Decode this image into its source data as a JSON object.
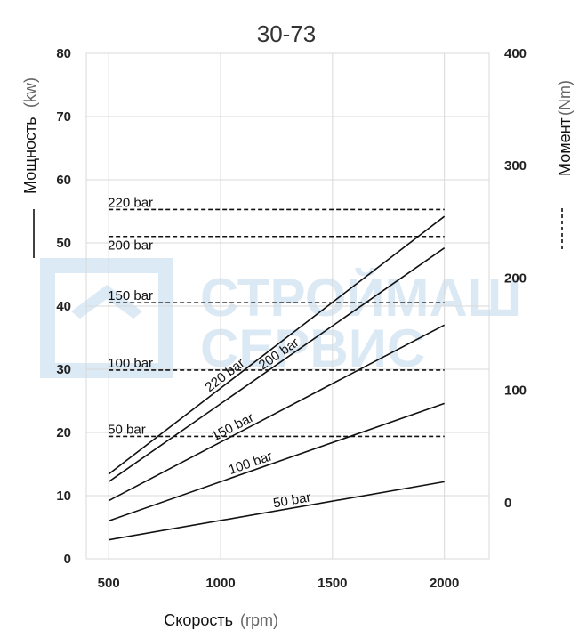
{
  "watermark": {
    "line1": "СТРОЙМАШ",
    "line2": "СЕРВИС"
  },
  "chart_data": {
    "type": "line",
    "title": "30-73",
    "xlabel": "Скорость",
    "xunit": "(rpm)",
    "ylabel_left": "Мощность",
    "yunit_left": "(kw)",
    "ylabel_right": "Момент",
    "yunit_right": "(Nm)",
    "xlim": [
      400,
      2200
    ],
    "x_ticks": [
      500,
      1000,
      1500,
      2000
    ],
    "ylim_left": [
      0,
      80
    ],
    "y_ticks_left": [
      0,
      10,
      20,
      30,
      40,
      50,
      60,
      70,
      80
    ],
    "ylim_right": [
      -50,
      400
    ],
    "y_ticks_right": [
      0,
      100,
      200,
      300,
      400
    ],
    "grid": true,
    "power_series": [
      {
        "name": "50 bar",
        "x": [
          500,
          2000
        ],
        "y": [
          3.0,
          12.2
        ]
      },
      {
        "name": "100 bar",
        "x": [
          500,
          2000
        ],
        "y": [
          6.0,
          24.6
        ]
      },
      {
        "name": "150 bar",
        "x": [
          500,
          2000
        ],
        "y": [
          9.2,
          37.0
        ]
      },
      {
        "name": "200 bar",
        "x": [
          500,
          2000
        ],
        "y": [
          12.2,
          49.2
        ]
      },
      {
        "name": "220 bar",
        "x": [
          500,
          2000
        ],
        "y": [
          13.4,
          54.2
        ]
      }
    ],
    "torque_series": [
      {
        "name": "50 bar",
        "x": [
          500,
          2000
        ],
        "y": [
          59,
          59
        ]
      },
      {
        "name": "100 bar",
        "x": [
          500,
          2000
        ],
        "y": [
          118,
          118
        ]
      },
      {
        "name": "150 bar",
        "x": [
          500,
          2000
        ],
        "y": [
          178,
          178
        ]
      },
      {
        "name": "200 bar",
        "x": [
          500,
          2000
        ],
        "y": [
          237,
          237
        ]
      },
      {
        "name": "220 bar",
        "x": [
          500,
          2000
        ],
        "y": [
          261,
          261
        ]
      }
    ]
  }
}
